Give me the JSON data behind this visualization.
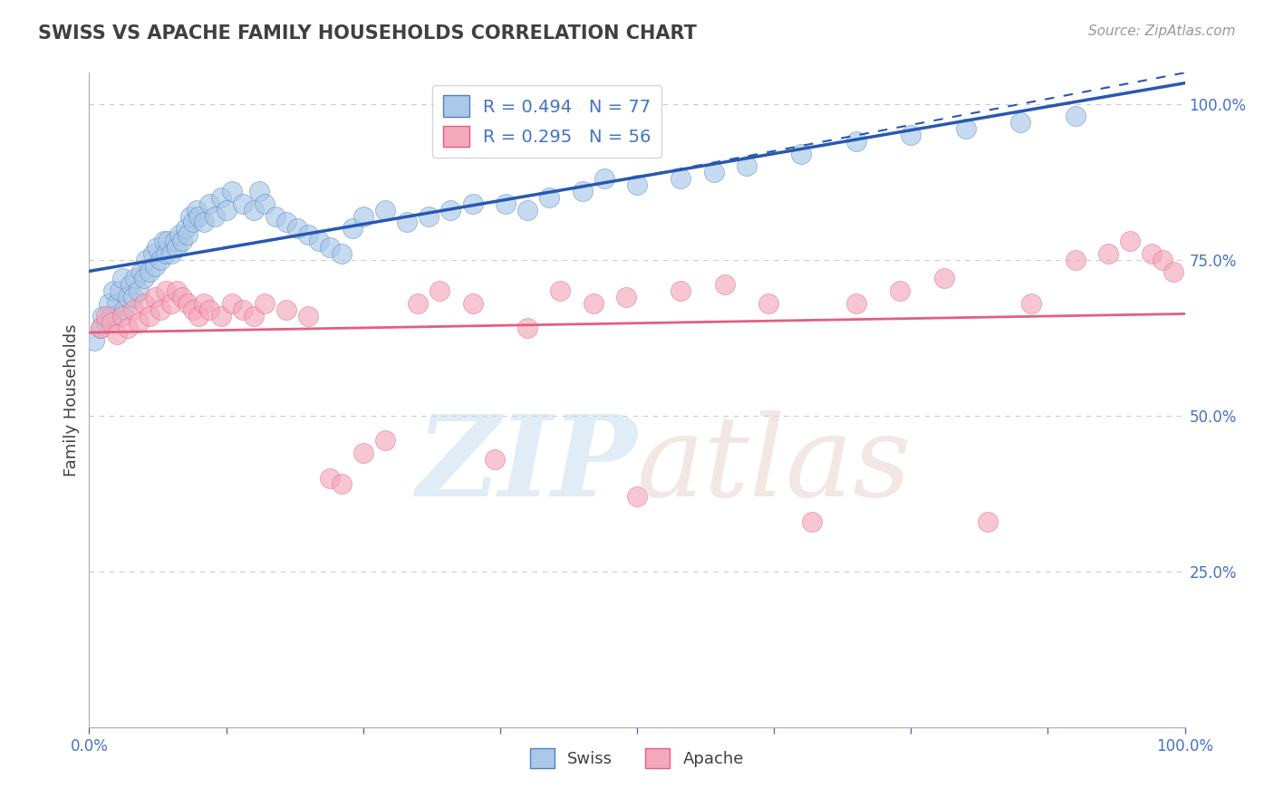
{
  "title": "SWISS VS APACHE FAMILY HOUSEHOLDS CORRELATION CHART",
  "source_text": "Source: ZipAtlas.com",
  "ylabel": "Family Households",
  "xlim": [
    0,
    1
  ],
  "ylim": [
    0,
    1
  ],
  "ytick_labels": [
    "25.0%",
    "50.0%",
    "75.0%",
    "100.0%"
  ],
  "swiss_R": 0.494,
  "swiss_N": 77,
  "apache_R": 0.295,
  "apache_N": 56,
  "swiss_color": "#aac8e8",
  "apache_color": "#f4a8bc",
  "swiss_edge_color": "#5080c0",
  "apache_edge_color": "#e06080",
  "swiss_line_color": "#2858b0",
  "apache_line_color": "#e06080",
  "grid_color": "#cccccc",
  "axis_color": "#aaaaaa",
  "label_color": "#4472C4",
  "title_color": "#404040",
  "source_color": "#999999",
  "watermark_zip_color": "#c8ddf0",
  "watermark_atlas_color": "#e8d4cc",
  "swiss_x": [
    0.005,
    0.01,
    0.012,
    0.015,
    0.018,
    0.02,
    0.022,
    0.025,
    0.028,
    0.03,
    0.032,
    0.035,
    0.038,
    0.04,
    0.042,
    0.045,
    0.048,
    0.05,
    0.052,
    0.055,
    0.058,
    0.06,
    0.062,
    0.065,
    0.068,
    0.07,
    0.072,
    0.075,
    0.078,
    0.08,
    0.082,
    0.085,
    0.088,
    0.09,
    0.092,
    0.095,
    0.098,
    0.1,
    0.105,
    0.11,
    0.115,
    0.12,
    0.125,
    0.13,
    0.14,
    0.15,
    0.155,
    0.16,
    0.17,
    0.18,
    0.19,
    0.2,
    0.21,
    0.22,
    0.23,
    0.24,
    0.25,
    0.27,
    0.29,
    0.31,
    0.33,
    0.35,
    0.38,
    0.4,
    0.42,
    0.45,
    0.47,
    0.5,
    0.54,
    0.57,
    0.6,
    0.65,
    0.7,
    0.75,
    0.8,
    0.85,
    0.9
  ],
  "swiss_y": [
    0.62,
    0.64,
    0.66,
    0.65,
    0.68,
    0.66,
    0.7,
    0.68,
    0.7,
    0.72,
    0.67,
    0.69,
    0.71,
    0.69,
    0.72,
    0.7,
    0.73,
    0.72,
    0.75,
    0.73,
    0.76,
    0.74,
    0.77,
    0.75,
    0.78,
    0.76,
    0.78,
    0.76,
    0.78,
    0.77,
    0.79,
    0.78,
    0.8,
    0.79,
    0.82,
    0.81,
    0.83,
    0.82,
    0.81,
    0.84,
    0.82,
    0.85,
    0.83,
    0.86,
    0.84,
    0.83,
    0.86,
    0.84,
    0.82,
    0.81,
    0.8,
    0.79,
    0.78,
    0.77,
    0.76,
    0.8,
    0.82,
    0.83,
    0.81,
    0.82,
    0.83,
    0.84,
    0.84,
    0.83,
    0.85,
    0.86,
    0.88,
    0.87,
    0.88,
    0.89,
    0.9,
    0.92,
    0.94,
    0.95,
    0.96,
    0.97,
    0.98
  ],
  "apache_x": [
    0.01,
    0.015,
    0.02,
    0.025,
    0.03,
    0.035,
    0.04,
    0.045,
    0.05,
    0.055,
    0.06,
    0.065,
    0.07,
    0.075,
    0.08,
    0.085,
    0.09,
    0.095,
    0.1,
    0.105,
    0.11,
    0.12,
    0.13,
    0.14,
    0.15,
    0.16,
    0.18,
    0.2,
    0.22,
    0.23,
    0.25,
    0.27,
    0.3,
    0.32,
    0.35,
    0.37,
    0.4,
    0.43,
    0.46,
    0.49,
    0.5,
    0.54,
    0.58,
    0.62,
    0.66,
    0.7,
    0.74,
    0.78,
    0.82,
    0.86,
    0.9,
    0.93,
    0.95,
    0.97,
    0.98,
    0.99
  ],
  "apache_y": [
    0.64,
    0.66,
    0.65,
    0.63,
    0.66,
    0.64,
    0.67,
    0.65,
    0.68,
    0.66,
    0.69,
    0.67,
    0.7,
    0.68,
    0.7,
    0.69,
    0.68,
    0.67,
    0.66,
    0.68,
    0.67,
    0.66,
    0.68,
    0.67,
    0.66,
    0.68,
    0.67,
    0.66,
    0.4,
    0.39,
    0.44,
    0.46,
    0.68,
    0.7,
    0.68,
    0.43,
    0.64,
    0.7,
    0.68,
    0.69,
    0.37,
    0.7,
    0.71,
    0.68,
    0.33,
    0.68,
    0.7,
    0.72,
    0.33,
    0.68,
    0.75,
    0.76,
    0.78,
    0.76,
    0.75,
    0.73
  ]
}
